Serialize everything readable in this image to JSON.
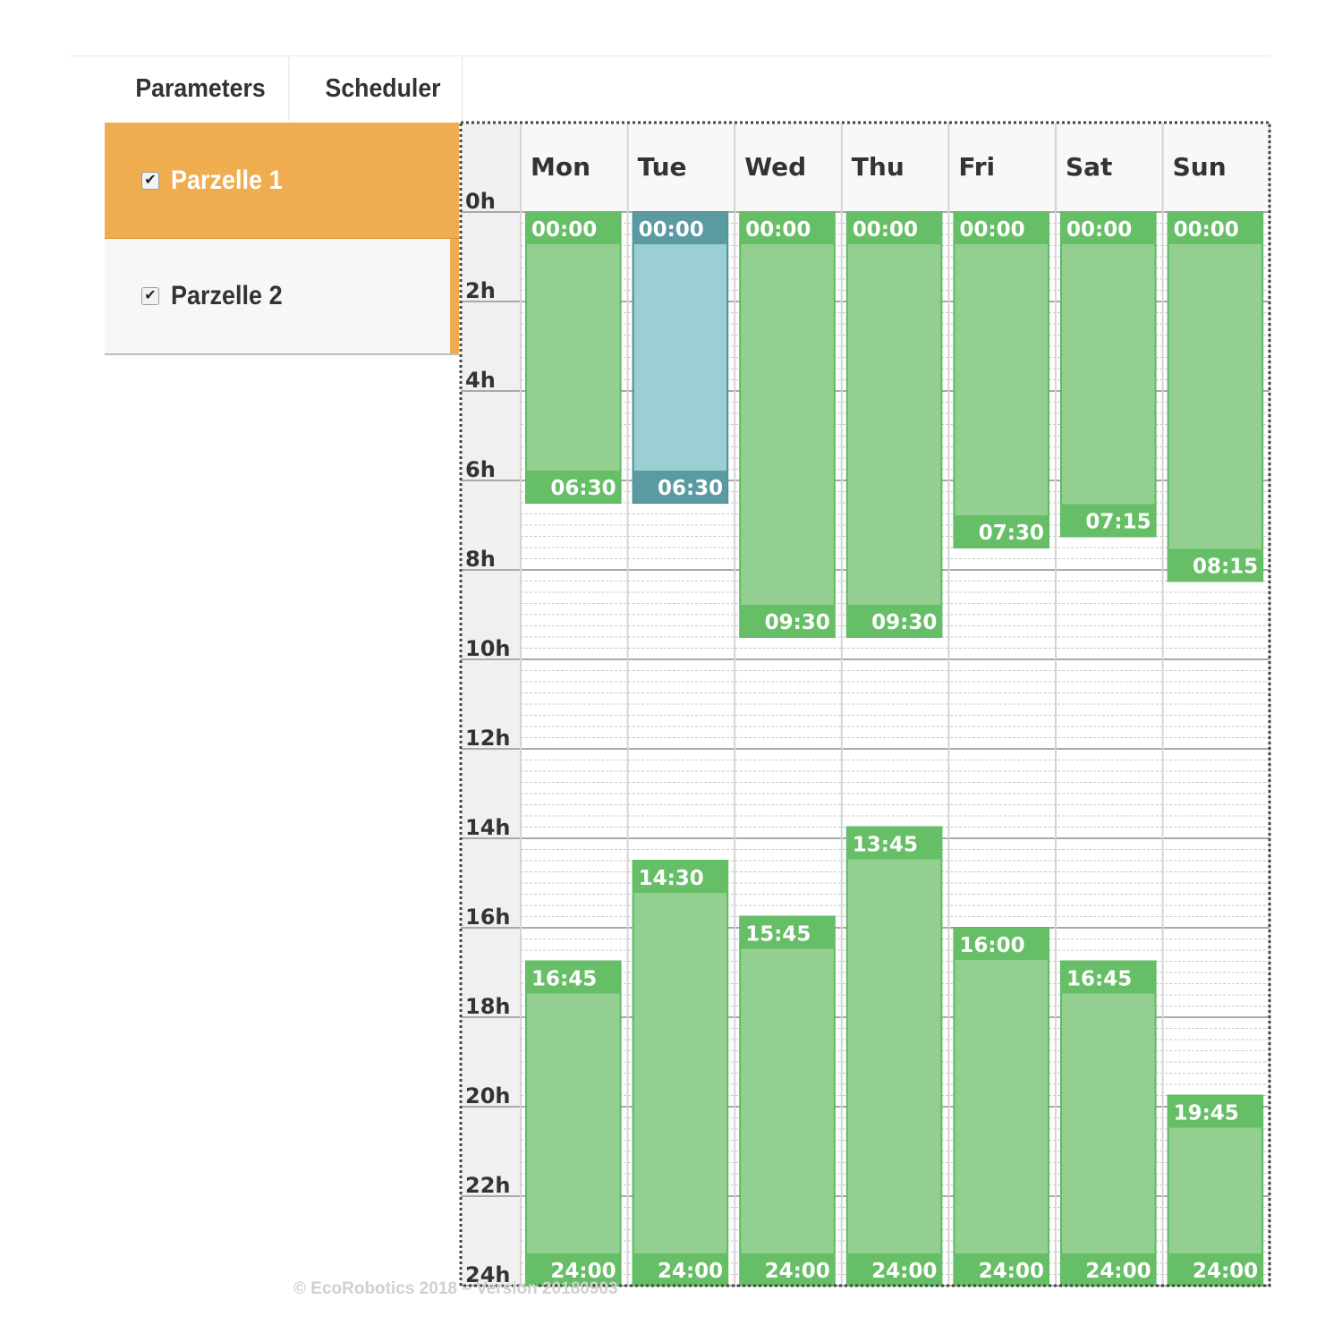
{
  "tabs": [
    {
      "label": "Parameters"
    },
    {
      "label": "Scheduler"
    }
  ],
  "plots": [
    {
      "label": "Parzelle 1",
      "checked": true,
      "selected": true
    },
    {
      "label": "Parzelle 2",
      "checked": true,
      "selected": false
    }
  ],
  "footer": "© EcoRobotics 2018 – Version 20180903",
  "scheduler": {
    "days": [
      "Mon",
      "Tue",
      "Wed",
      "Thu",
      "Fri",
      "Sat",
      "Sun"
    ],
    "hour_labels": [
      "0h",
      "2h",
      "4h",
      "6h",
      "8h",
      "10h",
      "12h",
      "14h",
      "16h",
      "18h",
      "20h",
      "22h",
      "24h"
    ],
    "colors": {
      "block_fill": "#93cf90",
      "block_border": "#5dbb63",
      "block_label_bg": "#66bf66",
      "selected_fill": "#9bcfd3",
      "selected_border": "#4d8f98",
      "selected_label_bg": "#5a9aa1",
      "label_text": "#ffffff"
    },
    "blocks": [
      {
        "day": 0,
        "start": 0,
        "end": 6.5,
        "start_label": "00:00",
        "end_label": "06:30",
        "selected": false
      },
      {
        "day": 0,
        "start": 16.75,
        "end": 24,
        "start_label": "16:45",
        "end_label": "24:00",
        "selected": false
      },
      {
        "day": 1,
        "start": 0,
        "end": 6.5,
        "start_label": "00:00",
        "end_label": "06:30",
        "selected": true
      },
      {
        "day": 1,
        "start": 14.5,
        "end": 24,
        "start_label": "14:30",
        "end_label": "24:00",
        "selected": false
      },
      {
        "day": 2,
        "start": 0,
        "end": 9.5,
        "start_label": "00:00",
        "end_label": "09:30",
        "selected": false
      },
      {
        "day": 2,
        "start": 15.75,
        "end": 24,
        "start_label": "15:45",
        "end_label": "24:00",
        "selected": false
      },
      {
        "day": 3,
        "start": 0,
        "end": 9.5,
        "start_label": "00:00",
        "end_label": "09:30",
        "selected": false
      },
      {
        "day": 3,
        "start": 13.75,
        "end": 24,
        "start_label": "13:45",
        "end_label": "24:00",
        "selected": false
      },
      {
        "day": 4,
        "start": 0,
        "end": 7.5,
        "start_label": "00:00",
        "end_label": "07:30",
        "selected": false
      },
      {
        "day": 4,
        "start": 16,
        "end": 24,
        "start_label": "16:00",
        "end_label": "24:00",
        "selected": false
      },
      {
        "day": 5,
        "start": 0,
        "end": 7.25,
        "start_label": "00:00",
        "end_label": "07:15",
        "selected": false
      },
      {
        "day": 5,
        "start": 16.75,
        "end": 24,
        "start_label": "16:45",
        "end_label": "24:00",
        "selected": false
      },
      {
        "day": 6,
        "start": 0,
        "end": 8.25,
        "start_label": "00:00",
        "end_label": "08:15",
        "selected": false
      },
      {
        "day": 6,
        "start": 19.75,
        "end": 24,
        "start_label": "19:45",
        "end_label": "24:00",
        "selected": false
      }
    ]
  }
}
